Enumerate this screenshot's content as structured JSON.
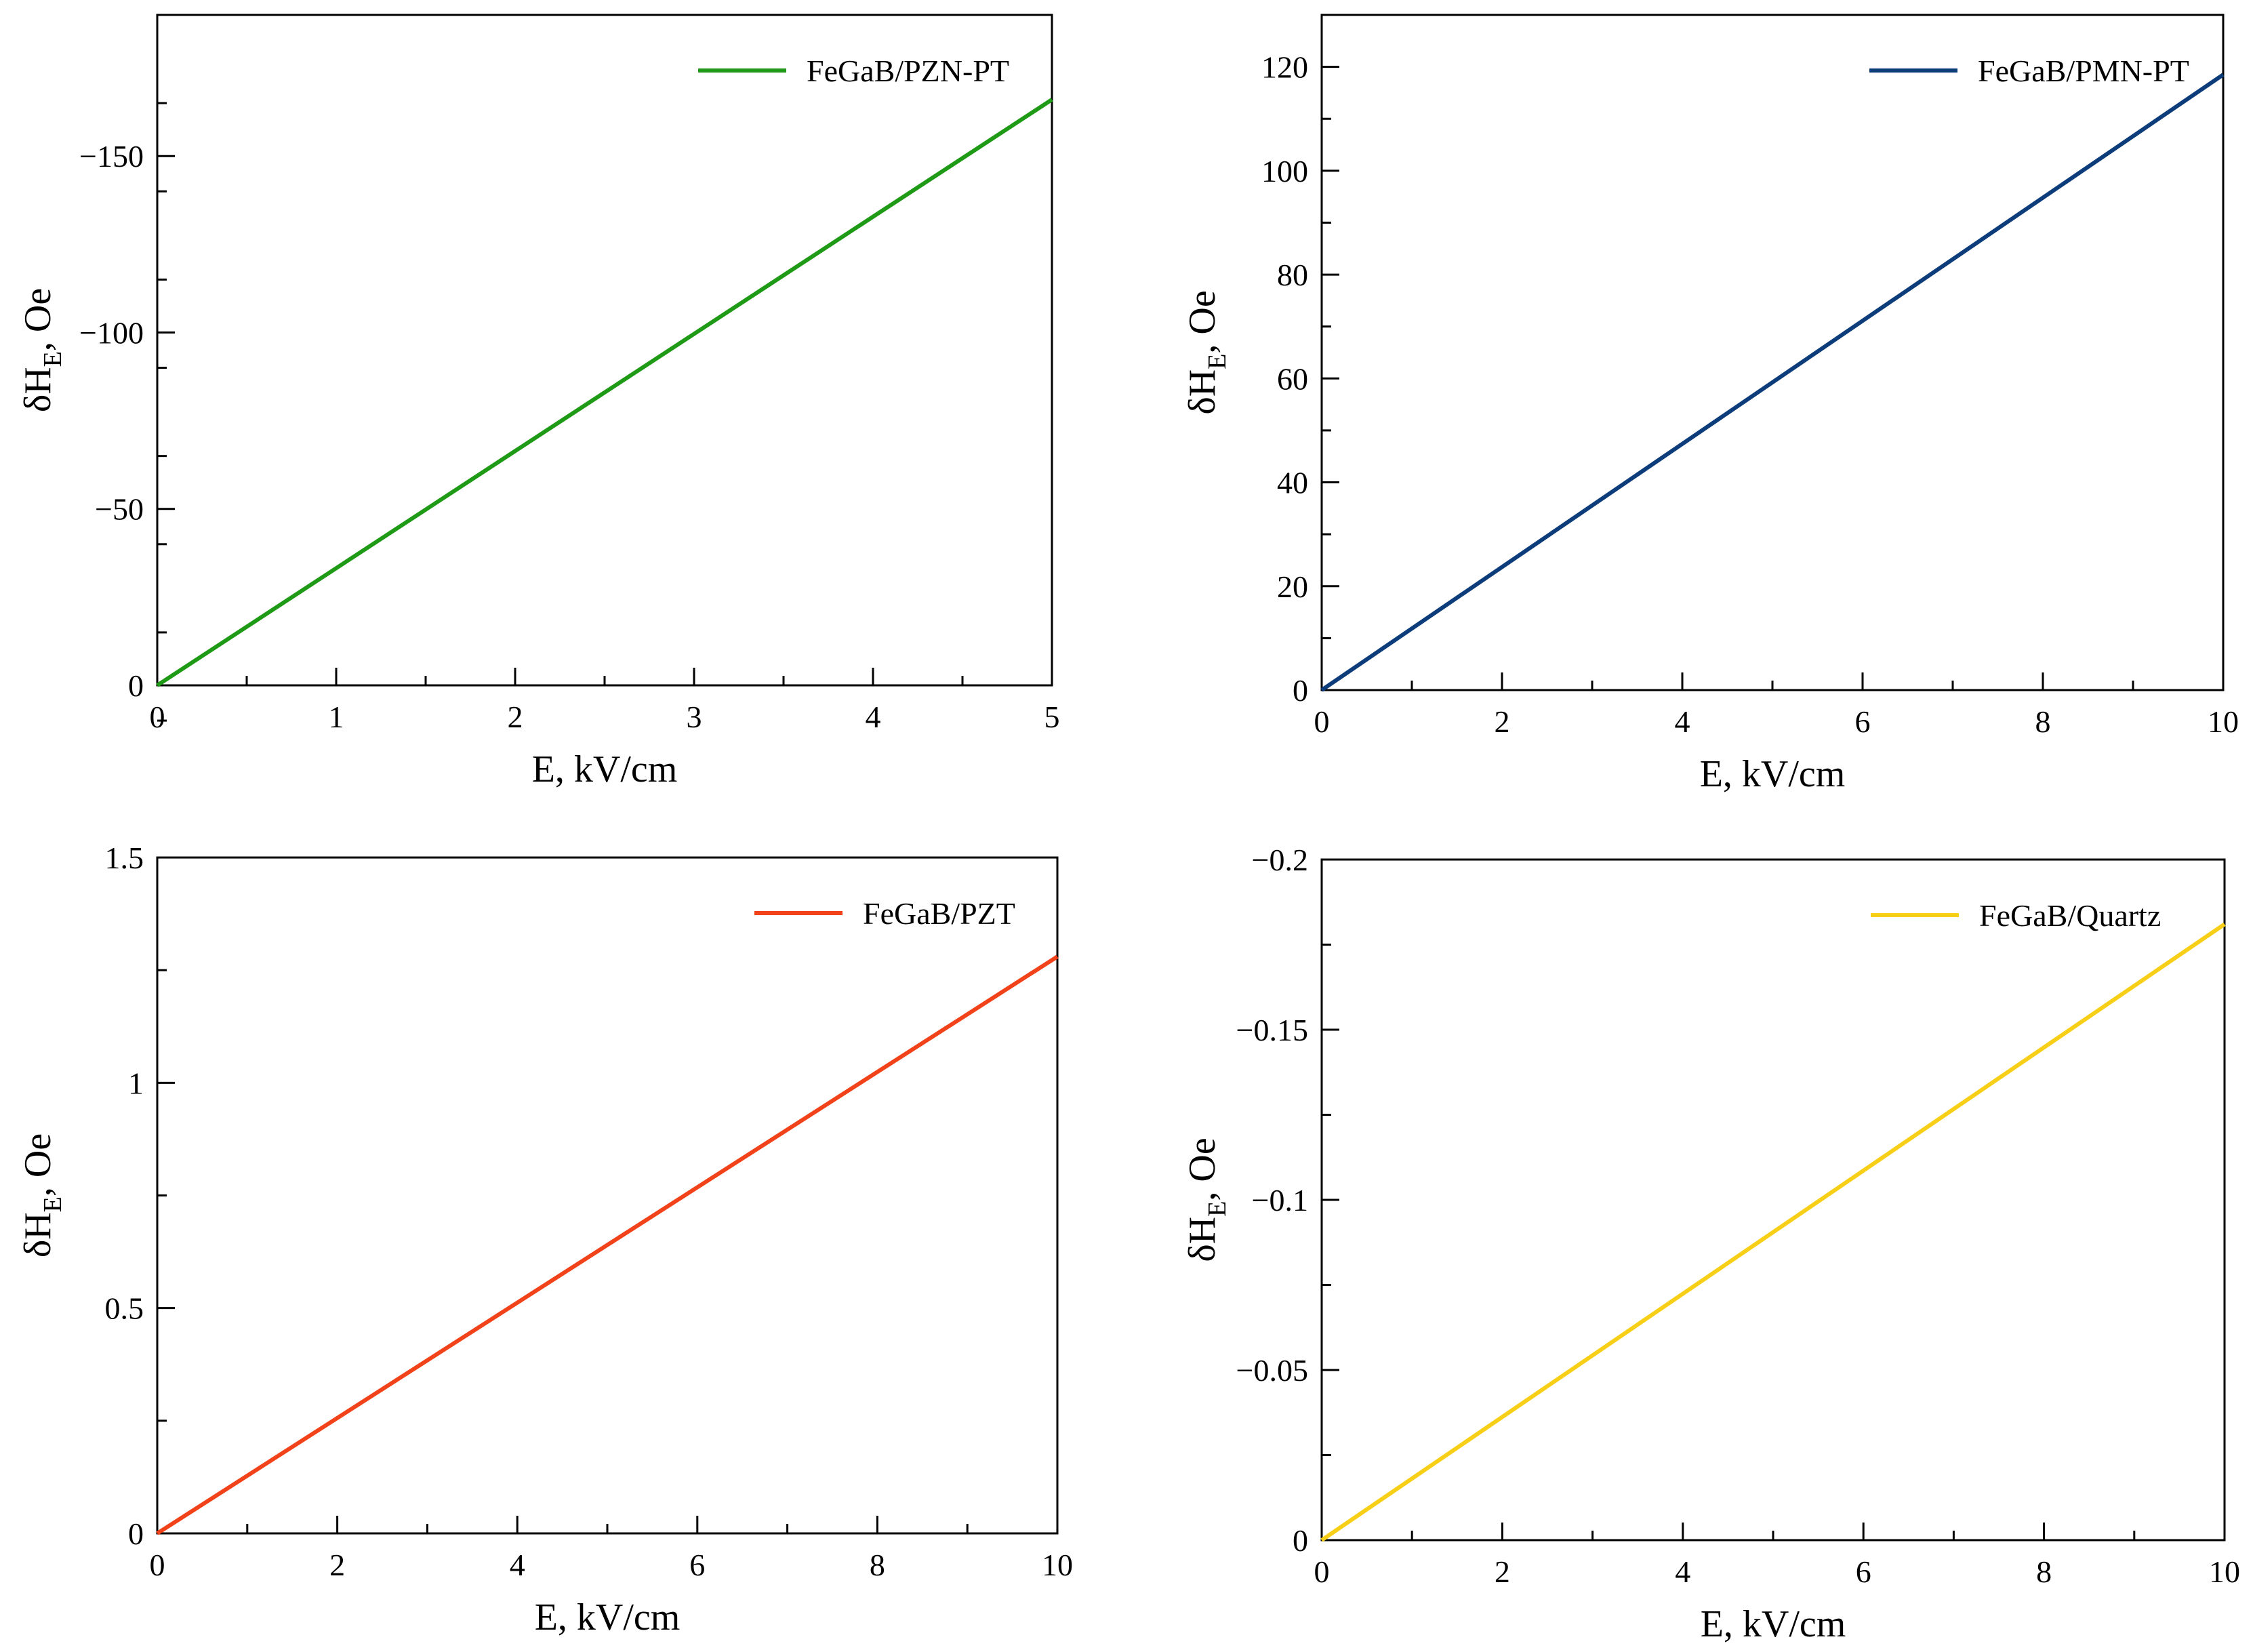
{
  "chart_data": [
    {
      "type": "line",
      "panel": "top-left",
      "title": "",
      "xlabel": "E, kV/cm",
      "ylabel": {
        "main": "δH",
        "sub": "E",
        "suffix": ", Oe"
      },
      "xlim": [
        0,
        5
      ],
      "ylim": [
        0,
        -190
      ],
      "x_ticks": [
        0,
        1,
        2,
        3,
        4,
        5
      ],
      "x_tick_labels": [
        "0",
        "1",
        "2",
        "3",
        "4",
        "5"
      ],
      "x_minor_step": 0.5,
      "y_ticks": [
        0,
        -50,
        -100,
        -150
      ],
      "y_tick_labels": [
        "0",
        "−50",
        "−100",
        "−150"
      ],
      "y_minor_step": 25,
      "legend_position": "top-right",
      "grid": false,
      "series": [
        {
          "name": "FeGaB/PZN-PT",
          "color": "#1f9a16",
          "x": [
            0,
            5
          ],
          "y": [
            0,
            -166
          ]
        }
      ]
    },
    {
      "type": "line",
      "panel": "top-right",
      "title": "",
      "xlabel": "E, kV/cm",
      "ylabel": {
        "main": "δH",
        "sub": "E",
        "suffix": ", Oe"
      },
      "xlim": [
        0,
        10
      ],
      "ylim": [
        0,
        130
      ],
      "x_ticks": [
        0,
        2,
        4,
        6,
        8,
        10
      ],
      "x_tick_labels": [
        "0",
        "2",
        "4",
        "6",
        "8",
        "10"
      ],
      "x_minor_step": 1,
      "y_ticks": [
        0,
        20,
        40,
        60,
        80,
        100,
        120
      ],
      "y_tick_labels": [
        "0",
        "20",
        "40",
        "60",
        "80",
        "100",
        "120"
      ],
      "y_minor_step": 10,
      "legend_position": "top-right",
      "grid": false,
      "series": [
        {
          "name": "FeGaB/PMN-PT",
          "color": "#0c3d7a",
          "x": [
            0,
            10
          ],
          "y": [
            0,
            118.5
          ]
        }
      ]
    },
    {
      "type": "line",
      "panel": "bottom-left",
      "title": "",
      "xlabel": "E, kV/cm",
      "ylabel": {
        "main": "δH",
        "sub": "E",
        "suffix": ", Oe"
      },
      "xlim": [
        0,
        10
      ],
      "ylim": [
        0,
        1.5
      ],
      "x_ticks": [
        0,
        2,
        4,
        6,
        8,
        10
      ],
      "x_tick_labels": [
        "0",
        "2",
        "4",
        "6",
        "8",
        "10"
      ],
      "x_minor_step": 1,
      "y_ticks": [
        0,
        0.5,
        1,
        1.5
      ],
      "y_tick_labels": [
        "0",
        "0.5",
        "1",
        "1.5"
      ],
      "y_minor_step": 0.25,
      "legend_position": "top-right",
      "grid": false,
      "series": [
        {
          "name": "FeGaB/PZT",
          "color": "#f2421a",
          "x": [
            0,
            10
          ],
          "y": [
            0,
            1.28
          ]
        }
      ]
    },
    {
      "type": "line",
      "panel": "bottom-right",
      "title": "",
      "xlabel": "E, kV/cm",
      "ylabel": {
        "main": "δH",
        "sub": "E",
        "suffix": ", Oe"
      },
      "xlim": [
        0,
        10
      ],
      "ylim": [
        0,
        -0.2
      ],
      "x_ticks": [
        0,
        2,
        4,
        6,
        8,
        10
      ],
      "x_tick_labels": [
        "0",
        "2",
        "4",
        "6",
        "8",
        "10"
      ],
      "x_minor_step": 1,
      "y_ticks": [
        0,
        -0.05,
        -0.1,
        -0.15,
        -0.2
      ],
      "y_tick_labels": [
        "0",
        "−0.05",
        "−0.1",
        "−0.15",
        "−0.2"
      ],
      "y_minor_step": 0.025,
      "legend_position": "top-right",
      "grid": false,
      "series": [
        {
          "name": "FeGaB/Quartz",
          "color": "#f7cf16",
          "x": [
            0,
            10
          ],
          "y": [
            0,
            -0.181
          ]
        }
      ]
    }
  ]
}
